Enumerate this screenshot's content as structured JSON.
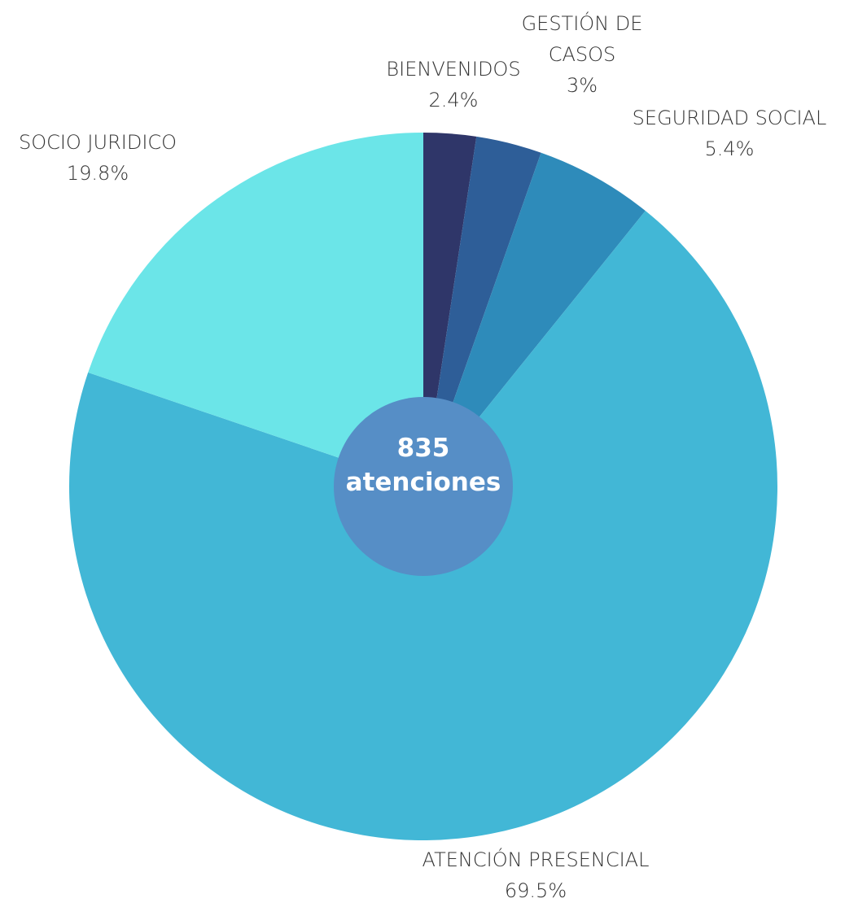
{
  "chart_data": {
    "type": "pie",
    "categories": [
      "BIENVENIDOS",
      "GESTIÓN DE CASOS",
      "SEGURIDAD SOCIAL",
      "ATENCIÓN PRESENCIAL",
      "SOCIO JURIDICO"
    ],
    "values": [
      2.4,
      3,
      5.4,
      69.5,
      19.8
    ],
    "value_labels": [
      "2.4%",
      "3%",
      "5.4%",
      "69.5%",
      "19.8%"
    ],
    "colors": [
      "#2f3669",
      "#2e5e98",
      "#2e8bba",
      "#42b7d6",
      "#6be5e8"
    ],
    "total": 835,
    "total_unit": "atenciones",
    "center_color": "#568ec6"
  }
}
